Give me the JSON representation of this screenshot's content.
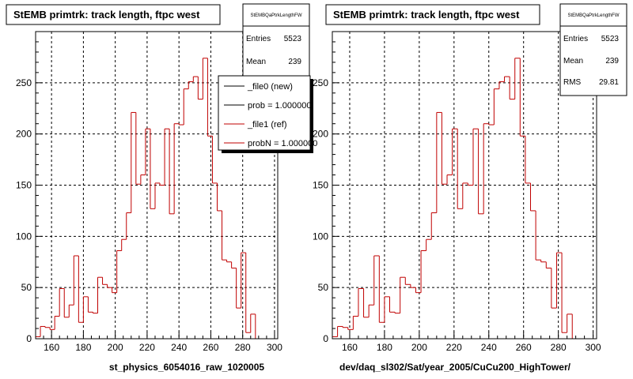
{
  "colors": {
    "axes": "#000000",
    "grid": "#000000",
    "hist": "#c00000",
    "ref_line": "#000000",
    "background": "#ffffff"
  },
  "panels": [
    {
      "title": "StEMB primtrk: track length, ftpc west",
      "xlabel": "st_physics_6054016_raw_1020005",
      "stats": {
        "name": "StEMBQaPtrkLengthFW",
        "rows": [
          {
            "label": "Entries",
            "value": "5523"
          },
          {
            "label": "Mean",
            "value": "239"
          }
        ]
      },
      "legend": [
        {
          "label": "_file0 (new)",
          "style": "line",
          "color": "#000000"
        },
        {
          "label": "prob = 1.000000",
          "style": "line",
          "color": "#000000"
        },
        {
          "label": "_file1 (ref)",
          "style": "line",
          "color": "#c00000"
        },
        {
          "label": "probN = 1.000000",
          "style": "line",
          "color": "#c00000"
        }
      ]
    },
    {
      "title": "StEMB primtrk: track length, ftpc west",
      "xlabel": "dev/daq_sl302/Sat/year_2005/CuCu200_HighTower/",
      "stats": {
        "name": "StEMBQaPtrkLengthFW",
        "rows": [
          {
            "label": "Entries",
            "value": "5523"
          },
          {
            "label": "Mean",
            "value": "239"
          },
          {
            "label": "RMS",
            "value": "29.81"
          }
        ]
      }
    }
  ],
  "chart_data": [
    {
      "type": "histogram",
      "title": "StEMB primtrk: track length, ftpc west",
      "xlabel": "st_physics_6054016_raw_1020005",
      "ylabel": "",
      "xlim": [
        150,
        302
      ],
      "ylim": [
        0,
        300
      ],
      "grid": true,
      "x_ticks": [
        160,
        180,
        200,
        220,
        240,
        260,
        280,
        300
      ],
      "y_ticks": [
        0,
        50,
        100,
        150,
        200,
        250
      ],
      "bin_edges_start": 150,
      "bin_width": 3,
      "series": [
        {
          "name": "_file1 (ref)",
          "values": [
            2,
            12,
            11,
            9,
            22,
            49,
            21,
            33,
            81,
            16,
            41,
            26,
            25,
            60,
            53,
            50,
            45,
            86,
            97,
            123,
            221,
            151,
            160,
            205,
            127,
            152,
            150,
            205,
            122,
            210,
            209,
            244,
            251,
            256,
            234,
            274,
            198,
            152,
            125,
            77,
            75,
            69,
            30,
            84,
            6,
            24
          ]
        }
      ]
    },
    {
      "type": "histogram",
      "title": "StEMB primtrk: track length, ftpc west",
      "xlabel": "dev/daq_sl302/Sat/year_2005/CuCu200_HighTower/",
      "ylabel": "",
      "xlim": [
        150,
        302
      ],
      "ylim": [
        0,
        300
      ],
      "grid": true,
      "x_ticks": [
        160,
        180,
        200,
        220,
        240,
        260,
        280,
        300
      ],
      "y_ticks": [
        0,
        50,
        100,
        150,
        200,
        250
      ],
      "bin_edges_start": 150,
      "bin_width": 3,
      "series": [
        {
          "name": "",
          "values": [
            2,
            12,
            11,
            9,
            22,
            49,
            21,
            33,
            81,
            16,
            41,
            26,
            25,
            60,
            53,
            50,
            45,
            86,
            97,
            123,
            221,
            151,
            160,
            205,
            127,
            152,
            150,
            205,
            122,
            210,
            209,
            244,
            251,
            256,
            234,
            274,
            198,
            152,
            125,
            77,
            75,
            69,
            30,
            84,
            6,
            24
          ]
        }
      ]
    }
  ]
}
